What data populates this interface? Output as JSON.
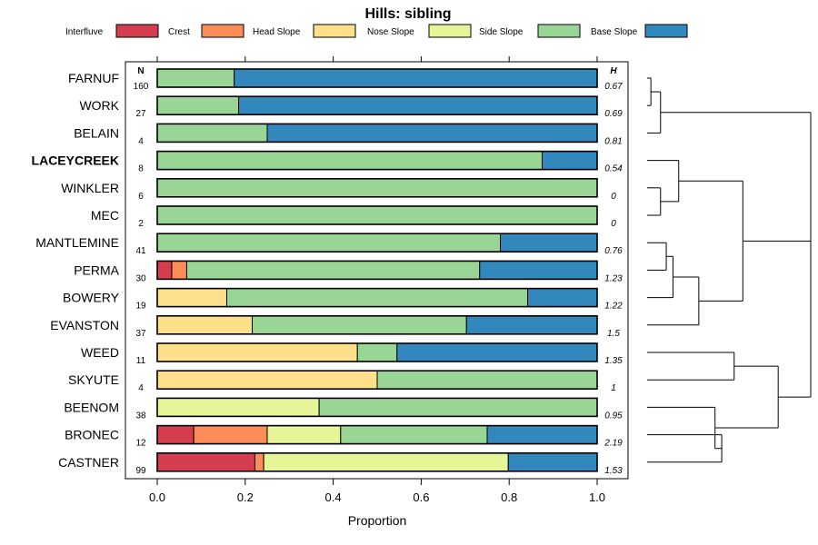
{
  "chart_data": {
    "type": "bar",
    "stacked": true,
    "orientation": "horizontal",
    "title": "Hills: sibling",
    "xlabel": "Proportion",
    "xlim": [
      0,
      1
    ],
    "x_ticks": [
      "0.0",
      "0.2",
      "0.4",
      "0.6",
      "0.8",
      "1.0"
    ],
    "x_tick_values": [
      0,
      0.2,
      0.4,
      0.6,
      0.8,
      1.0
    ],
    "n_header": "N",
    "h_header": "H",
    "legend": [
      {
        "name": "Interfluve",
        "color": "#D53E4F"
      },
      {
        "name": "Crest",
        "color": "#FC8D59"
      },
      {
        "name": "Head Slope",
        "color": "#FEE08B"
      },
      {
        "name": "Nose Slope",
        "color": "#E6F598"
      },
      {
        "name": "Side Slope",
        "color": "#99D594"
      },
      {
        "name": "Base Slope",
        "color": "#3288BD"
      }
    ],
    "rows": [
      {
        "label": "FARNUF",
        "bold": false,
        "n": "160",
        "h": "0.67",
        "values": [
          0,
          0,
          0,
          0,
          0.175,
          0.825
        ]
      },
      {
        "label": "WORK",
        "bold": false,
        "n": "27",
        "h": "0.69",
        "values": [
          0,
          0,
          0,
          0,
          0.185,
          0.815
        ]
      },
      {
        "label": "BELAIN",
        "bold": false,
        "n": "4",
        "h": "0.81",
        "values": [
          0,
          0,
          0,
          0,
          0.25,
          0.75
        ]
      },
      {
        "label": "LACEYCREEK",
        "bold": true,
        "n": "8",
        "h": "0.54",
        "values": [
          0,
          0,
          0,
          0,
          0.875,
          0.125
        ]
      },
      {
        "label": "WINKLER",
        "bold": false,
        "n": "6",
        "h": "0",
        "values": [
          0,
          0,
          0,
          0,
          1.0,
          0
        ]
      },
      {
        "label": "MEC",
        "bold": false,
        "n": "2",
        "h": "0",
        "values": [
          0,
          0,
          0,
          0,
          1.0,
          0
        ]
      },
      {
        "label": "MANTLEMINE",
        "bold": false,
        "n": "41",
        "h": "0.76",
        "values": [
          0,
          0,
          0,
          0,
          0.78,
          0.22
        ]
      },
      {
        "label": "PERMA",
        "bold": false,
        "n": "30",
        "h": "1.23",
        "values": [
          0.033,
          0.034,
          0,
          0,
          0.666,
          0.267
        ]
      },
      {
        "label": "BOWERY",
        "bold": false,
        "n": "19",
        "h": "1.22",
        "values": [
          0,
          0,
          0.158,
          0,
          0.684,
          0.158
        ]
      },
      {
        "label": "EVANSTON",
        "bold": false,
        "n": "37",
        "h": "1.5",
        "values": [
          0,
          0,
          0.216,
          0,
          0.487,
          0.297
        ]
      },
      {
        "label": "WEED",
        "bold": false,
        "n": "11",
        "h": "1.35",
        "values": [
          0,
          0,
          0.455,
          0,
          0.09,
          0.455
        ]
      },
      {
        "label": "SKYUTE",
        "bold": false,
        "n": "4",
        "h": "1",
        "values": [
          0,
          0,
          0.5,
          0,
          0.5,
          0
        ]
      },
      {
        "label": "BEENOM",
        "bold": false,
        "n": "38",
        "h": "0.95",
        "values": [
          0,
          0,
          0,
          0.368,
          0.632,
          0
        ]
      },
      {
        "label": "BRONEC",
        "bold": false,
        "n": "12",
        "h": "2.19",
        "values": [
          0.083,
          0.167,
          0,
          0.167,
          0.333,
          0.25
        ]
      },
      {
        "label": "CASTNER",
        "bold": false,
        "n": "99",
        "h": "1.53",
        "values": [
          0.222,
          0.02,
          0,
          0.556,
          0,
          0.202
        ]
      }
    ],
    "dendrogram": {
      "type": "hierarchical-clustering",
      "leaf_order": [
        "FARNUF",
        "WORK",
        "BELAIN",
        "LACEYCREEK",
        "WINKLER",
        "MEC",
        "MANTLEMINE",
        "PERMA",
        "BOWERY",
        "EVANSTON",
        "WEED",
        "SKYUTE",
        "BEENOM",
        "BRONEC",
        "CASTNER"
      ],
      "height_unit": "relative (0 = leaves, 1 = root)",
      "merges": [
        {
          "members": [
            "FARNUF",
            "WORK"
          ],
          "height": 0.023
        },
        {
          "members": [
            "FARNUF+WORK",
            "BELAIN"
          ],
          "height": 0.082
        },
        {
          "members": [
            "WINKLER",
            "MEC"
          ],
          "height": 0.082
        },
        {
          "members": [
            "LACEYCREEK",
            "WINKLER+MEC"
          ],
          "height": 0.193
        },
        {
          "members": [
            "MANTLEMINE",
            "PERMA"
          ],
          "height": 0.117
        },
        {
          "members": [
            "MANTLEMINE+PERMA",
            "BOWERY"
          ],
          "height": 0.158
        },
        {
          "members": [
            "MANTLEMINE+PERMA+BOWERY",
            "EVANSTON"
          ],
          "height": 0.316
        },
        {
          "members": [
            "LACEYCREEK+WINKLER+MEC",
            "MANTLEMINE+PERMA+BOWERY+EVANSTON"
          ],
          "height": 0.585
        },
        {
          "members": [
            "FARNUF+WORK+BELAIN",
            "LACEYCREEK+...+EVANSTON"
          ],
          "height": 1.0
        },
        {
          "members": [
            "WEED",
            "SKYUTE"
          ],
          "height": 0.532
        },
        {
          "members": [
            "BRONEC",
            "CASTNER"
          ],
          "height": 0.456
        },
        {
          "members": [
            "BEENOM",
            "BRONEC+CASTNER"
          ],
          "height": 0.415
        },
        {
          "members": [
            "WEED+SKYUTE",
            "BEENOM+BRONEC+CASTNER"
          ],
          "height": 0.801
        },
        {
          "members": [
            "FARNUF+...+EVANSTON",
            "WEED+...+CASTNER"
          ],
          "height": 1.0
        }
      ]
    }
  }
}
